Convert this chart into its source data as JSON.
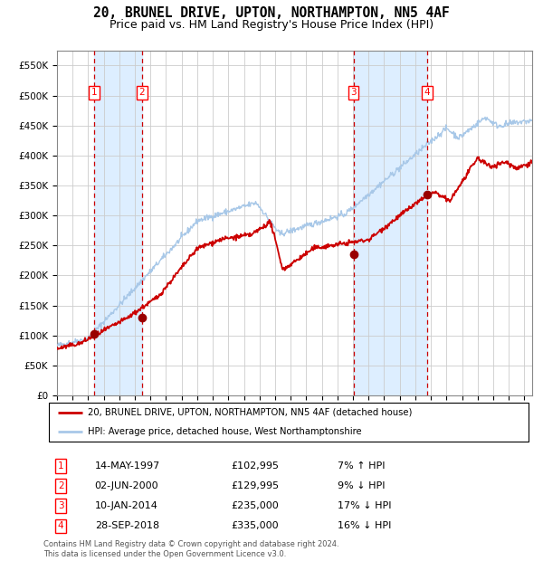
{
  "title": "20, BRUNEL DRIVE, UPTON, NORTHAMPTON, NN5 4AF",
  "subtitle": "Price paid vs. HM Land Registry's House Price Index (HPI)",
  "title_fontsize": 10.5,
  "subtitle_fontsize": 9.5,
  "transactions": [
    {
      "num": 1,
      "date": "14-MAY-1997",
      "year": 1997.37,
      "price": 102995,
      "pct": "7%",
      "dir": "↑"
    },
    {
      "num": 2,
      "date": "02-JUN-2000",
      "year": 2000.46,
      "price": 129995,
      "pct": "9%",
      "dir": "↓"
    },
    {
      "num": 3,
      "date": "10-JAN-2014",
      "year": 2014.03,
      "price": 235000,
      "pct": "17%",
      "dir": "↓"
    },
    {
      "num": 4,
      "date": "28-SEP-2018",
      "year": 2018.74,
      "price": 335000,
      "pct": "16%",
      "dir": "↓"
    }
  ],
  "hpi_color": "#a8c8e8",
  "price_color": "#cc0000",
  "dot_color": "#990000",
  "vline_color": "#cc0000",
  "shade_color": "#ddeeff",
  "ylim": [
    0,
    575000
  ],
  "yticks": [
    0,
    50000,
    100000,
    150000,
    200000,
    250000,
    300000,
    350000,
    400000,
    450000,
    500000,
    550000
  ],
  "xlim_start": 1995.0,
  "xlim_end": 2025.5,
  "background_color": "#ffffff",
  "grid_color": "#cccccc",
  "legend_line1": "20, BRUNEL DRIVE, UPTON, NORTHAMPTON, NN5 4AF (detached house)",
  "legend_line2": "HPI: Average price, detached house, West Northamptonshire",
  "table_rows": [
    [
      "1",
      "14-MAY-1997",
      "£102,995",
      "7% ↑ HPI"
    ],
    [
      "2",
      "02-JUN-2000",
      "£129,995",
      "9% ↓ HPI"
    ],
    [
      "3",
      "10-JAN-2014",
      "£235,000",
      "17% ↓ HPI"
    ],
    [
      "4",
      "28-SEP-2018",
      "£335,000",
      "16% ↓ HPI"
    ]
  ],
  "footer": "Contains HM Land Registry data © Crown copyright and database right 2024.\nThis data is licensed under the Open Government Licence v3.0."
}
